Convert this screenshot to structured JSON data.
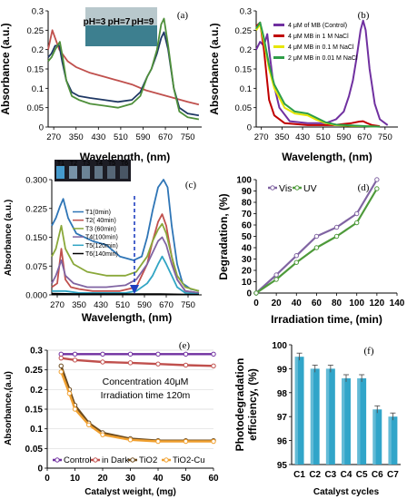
{
  "chart_data": [
    {
      "panel": "(a)",
      "type": "line",
      "xlabel": "Wavelength, (nm)",
      "ylabel": "Absorbance (a.u.)",
      "xlim": [
        250,
        800
      ],
      "ylim": [
        0,
        0.3
      ],
      "xticks": [
        270,
        350,
        430,
        510,
        590,
        670,
        750
      ],
      "xtick_labels": [
        "270",
        "350",
        "430",
        "510",
        "590",
        "670",
        "750"
      ],
      "yticks": [
        0,
        0.05,
        0.1,
        0.15,
        0.2,
        0.25,
        0.3
      ],
      "ytick_labels": [
        "0",
        "0.05",
        "0.1",
        "0.15",
        "0.2",
        "0.25",
        "0.3"
      ],
      "inset_labels": [
        "pH=3",
        "pH=7",
        "pH=9"
      ],
      "colors": {
        "red": "#c0504d",
        "darkblue": "#1f3864",
        "green": "#4e8f3a",
        "inset_bg": "#3d7f8f"
      },
      "series": [
        {
          "color": "#c0504d",
          "x": [
            250,
            265,
            275,
            290,
            320,
            350,
            400,
            450,
            500,
            550,
            600,
            650,
            700,
            750,
            790
          ],
          "y": [
            0.2,
            0.25,
            0.23,
            0.2,
            0.17,
            0.155,
            0.14,
            0.13,
            0.12,
            0.11,
            0.095,
            0.085,
            0.075,
            0.065,
            0.058
          ]
        },
        {
          "color": "#1f3864",
          "x": [
            250,
            262,
            275,
            290,
            300,
            315,
            335,
            360,
            400,
            450,
            500,
            550,
            580,
            605,
            620,
            640,
            655,
            665,
            680,
            700,
            720,
            750,
            790
          ],
          "y": [
            0.18,
            0.19,
            0.21,
            0.21,
            0.17,
            0.12,
            0.09,
            0.08,
            0.075,
            0.07,
            0.065,
            0.07,
            0.09,
            0.13,
            0.15,
            0.19,
            0.23,
            0.245,
            0.2,
            0.1,
            0.05,
            0.035,
            0.03
          ]
        },
        {
          "color": "#4e8f3a",
          "x": [
            250,
            262,
            275,
            292,
            302,
            315,
            335,
            360,
            400,
            450,
            500,
            550,
            580,
            605,
            620,
            640,
            655,
            665,
            680,
            700,
            720,
            750,
            790
          ],
          "y": [
            0.17,
            0.18,
            0.2,
            0.22,
            0.18,
            0.12,
            0.08,
            0.07,
            0.06,
            0.055,
            0.05,
            0.06,
            0.08,
            0.13,
            0.15,
            0.2,
            0.265,
            0.28,
            0.21,
            0.1,
            0.04,
            0.025,
            0.02
          ]
        }
      ]
    },
    {
      "panel": "(b)",
      "type": "line",
      "xlabel": "Wavelength, (nm)",
      "ylabel": "Absorbance (a.u.)",
      "xlim": [
        250,
        800
      ],
      "ylim": [
        0,
        0.3
      ],
      "xticks": [
        270,
        350,
        430,
        510,
        590,
        670,
        750
      ],
      "xtick_labels": [
        "270",
        "350",
        "430",
        "510",
        "590",
        "670",
        "750"
      ],
      "yticks": [
        0,
        0.05,
        0.1,
        0.15,
        0.2,
        0.25,
        0.3
      ],
      "ytick_labels": [
        "0",
        "0.05",
        "0.1",
        "0.15",
        "0.2",
        "0.25",
        "0.3"
      ],
      "legend_position": "top-right",
      "series": [
        {
          "name": "4 μM of MB (Control)",
          "color": "#7030a0",
          "x": [
            250,
            265,
            280,
            293,
            300,
            315,
            340,
            380,
            450,
            520,
            560,
            590,
            610,
            625,
            640,
            655,
            665,
            675,
            690,
            710,
            730,
            760
          ],
          "y": [
            0.2,
            0.22,
            0.21,
            0.24,
            0.2,
            0.12,
            0.05,
            0.015,
            0.01,
            0.01,
            0.02,
            0.04,
            0.08,
            0.12,
            0.18,
            0.25,
            0.275,
            0.25,
            0.15,
            0.06,
            0.02,
            0.005
          ]
        },
        {
          "name": "4 μM MB in 1 M  NaCl",
          "color": "#c00000",
          "x": [
            250,
            265,
            280,
            300,
            320,
            360,
            450,
            550,
            620,
            650,
            665,
            680,
            700,
            730
          ],
          "y": [
            0.26,
            0.27,
            0.2,
            0.07,
            0.03,
            0.01,
            0.005,
            0.005,
            0.01,
            0.014,
            0.015,
            0.01,
            0.005,
            0.002
          ]
        },
        {
          "name": "4 μM MB in 0.1 M NaCl",
          "color": "#e6e600",
          "x": [
            250,
            265,
            280,
            300,
            320,
            360,
            400,
            450,
            480,
            520,
            560,
            620,
            680,
            730
          ],
          "y": [
            0.25,
            0.265,
            0.22,
            0.15,
            0.1,
            0.05,
            0.035,
            0.03,
            0.02,
            0.01,
            0.005,
            0.003,
            0.002,
            0.001
          ]
        },
        {
          "name": "2 μM MB in 0.01 M NaCl",
          "color": "#2e9e48",
          "x": [
            250,
            265,
            280,
            300,
            320,
            360,
            400,
            450,
            480,
            520,
            560,
            620,
            680,
            730
          ],
          "y": [
            0.255,
            0.27,
            0.23,
            0.16,
            0.11,
            0.06,
            0.04,
            0.035,
            0.025,
            0.012,
            0.006,
            0.004,
            0.002,
            0.001
          ]
        }
      ]
    },
    {
      "panel": "(c)",
      "type": "line",
      "xlabel": "Wavelength, (nm)",
      "ylabel": "Absorbance (a.u.)",
      "xlim": [
        250,
        800
      ],
      "ylim": [
        0,
        0.3
      ],
      "xticks": [
        270,
        350,
        430,
        510,
        590,
        670,
        750
      ],
      "xtick_labels": [
        "270",
        "350",
        "430",
        "510",
        "590",
        "670",
        "750"
      ],
      "yticks": [
        0,
        0.075,
        0.15,
        0.225,
        0.3
      ],
      "ytick_labels": [
        "0.000",
        "0.075",
        "0.150",
        "0.225",
        "0.300"
      ],
      "inset_labels": [
        "T1",
        "T2",
        "T3",
        "T4",
        "T5",
        "T6"
      ],
      "series": [
        {
          "name": "T1(0min)",
          "color": "#2e75b6",
          "x": [
            250,
            265,
            280,
            292,
            310,
            340,
            400,
            450,
            500,
            550,
            580,
            600,
            620,
            640,
            660,
            675,
            690,
            710,
            730,
            760,
            790
          ],
          "y": [
            0.18,
            0.2,
            0.23,
            0.25,
            0.2,
            0.16,
            0.14,
            0.13,
            0.1,
            0.09,
            0.1,
            0.15,
            0.22,
            0.28,
            0.3,
            0.28,
            0.18,
            0.08,
            0.03,
            0.015,
            0.01
          ]
        },
        {
          "name": "T2( 40min)",
          "color": "#c0504d",
          "x": [
            250,
            270,
            285,
            300,
            320,
            350,
            400,
            500,
            560,
            600,
            620,
            640,
            655,
            670,
            690,
            710,
            740,
            790
          ],
          "y": [
            0.02,
            0.03,
            0.12,
            0.04,
            0.02,
            0.015,
            0.01,
            0.01,
            0.02,
            0.08,
            0.14,
            0.19,
            0.21,
            0.18,
            0.1,
            0.04,
            0.01,
            0.005
          ]
        },
        {
          "name": "T3 (60min)",
          "color": "#8aa83a",
          "x": [
            250,
            265,
            285,
            300,
            330,
            380,
            450,
            520,
            560,
            600,
            620,
            640,
            655,
            670,
            690,
            710,
            740,
            790
          ],
          "y": [
            0.1,
            0.12,
            0.18,
            0.12,
            0.08,
            0.06,
            0.05,
            0.05,
            0.06,
            0.1,
            0.14,
            0.17,
            0.185,
            0.16,
            0.1,
            0.05,
            0.02,
            0.01
          ]
        },
        {
          "name": "T4(100min)",
          "color": "#8064a2",
          "x": [
            250,
            265,
            285,
            300,
            330,
            380,
            450,
            520,
            560,
            600,
            620,
            640,
            655,
            670,
            690,
            710,
            740,
            790
          ],
          "y": [
            0.03,
            0.05,
            0.09,
            0.05,
            0.03,
            0.02,
            0.02,
            0.025,
            0.04,
            0.08,
            0.11,
            0.14,
            0.15,
            0.13,
            0.08,
            0.04,
            0.01,
            0.005
          ]
        },
        {
          "name": "T5(120min)",
          "color": "#31a5c4",
          "x": [
            250,
            300,
            350,
            450,
            520,
            560,
            600,
            620,
            640,
            655,
            670,
            690,
            710,
            740,
            790
          ],
          "y": [
            0.01,
            0.01,
            0.005,
            0.005,
            0.005,
            0.01,
            0.03,
            0.05,
            0.08,
            0.1,
            0.08,
            0.05,
            0.02,
            0.005,
            0.002
          ]
        },
        {
          "name": "T6(140min)",
          "color": "#000000",
          "x": [
            250,
            350,
            450,
            550,
            650,
            750,
            790
          ],
          "y": [
            0.003,
            0.002,
            0.002,
            0.002,
            0.002,
            0.001,
            0.001
          ]
        }
      ]
    },
    {
      "panel": "(d)",
      "type": "line",
      "xlabel": "Irradiation time, (min)",
      "ylabel": "Degradation, (%)",
      "xlim": [
        0,
        140
      ],
      "ylim": [
        0,
        100
      ],
      "xticks": [
        0,
        20,
        40,
        60,
        80,
        100,
        120,
        140
      ],
      "xtick_labels": [
        "0",
        "20",
        "40",
        "60",
        "80",
        "100",
        "120",
        "140"
      ],
      "yticks": [
        0,
        10,
        20,
        30,
        40,
        50,
        60,
        70,
        80,
        90,
        100
      ],
      "ytick_labels": [
        "0",
        "10",
        "20",
        "30",
        "40",
        "50",
        "60",
        "70",
        "80",
        "90",
        "100"
      ],
      "legend_position": "top-left",
      "series": [
        {
          "name": "Vis",
          "color": "#8064a2",
          "x": [
            0,
            20,
            40,
            60,
            80,
            100,
            120
          ],
          "y": [
            0,
            16,
            33,
            50,
            58,
            70,
            100
          ]
        },
        {
          "name": "UV",
          "color": "#4e9a3a",
          "x": [
            0,
            20,
            40,
            60,
            80,
            100,
            120
          ],
          "y": [
            0,
            12,
            27,
            40,
            50,
            62,
            92
          ]
        }
      ]
    },
    {
      "panel": "(e)",
      "type": "line",
      "xlabel": "Catalyst weight, (mg)",
      "ylabel": "Absorbance,(a.u)",
      "xlim": [
        0,
        60
      ],
      "ylim": [
        0,
        0.3
      ],
      "xticks": [
        0,
        10,
        20,
        30,
        40,
        50,
        60
      ],
      "xtick_labels": [
        "0",
        "10",
        "20",
        "30",
        "40",
        "50",
        "60"
      ],
      "yticks": [
        0,
        0.05,
        0.1,
        0.15,
        0.2,
        0.25,
        0.3
      ],
      "ytick_labels": [
        "0",
        "0.05",
        "0.1",
        "0.15",
        "0.2",
        "0.25",
        "0.3"
      ],
      "annotations": [
        "Concentration 40μM",
        "Irradiation time 120m"
      ],
      "legend_position": "bottom",
      "series": [
        {
          "name": "Control",
          "color": "#7030a0",
          "x": [
            5,
            10,
            20,
            30,
            40,
            50,
            60
          ],
          "y": [
            0.29,
            0.29,
            0.29,
            0.29,
            0.29,
            0.29,
            0.29
          ]
        },
        {
          "name": "in Dark",
          "color": "#c0504d",
          "x": [
            5,
            10,
            20,
            30,
            40,
            50,
            60
          ],
          "y": [
            0.28,
            0.275,
            0.27,
            0.268,
            0.265,
            0.262,
            0.26
          ]
        },
        {
          "name": "TiO2",
          "color": "#6b4a1e",
          "x": [
            5,
            8,
            10,
            15,
            20,
            30,
            40,
            50,
            60
          ],
          "y": [
            0.26,
            0.2,
            0.16,
            0.115,
            0.09,
            0.075,
            0.07,
            0.07,
            0.07
          ]
        },
        {
          "name": "TiO2-Cu",
          "color": "#f0a030",
          "x": [
            5,
            8,
            10,
            15,
            20,
            30,
            40,
            50,
            60
          ],
          "y": [
            0.245,
            0.19,
            0.15,
            0.11,
            0.085,
            0.072,
            0.068,
            0.068,
            0.068
          ]
        }
      ]
    },
    {
      "panel": "(f)",
      "type": "bar",
      "xlabel": "Catalyst cycles",
      "ylabel": "Photodegradation efficiency, (%)",
      "categories": [
        "C1",
        "C2",
        "C3",
        "C4",
        "C5",
        "C6",
        "C7"
      ],
      "values": [
        99.5,
        99.0,
        99.0,
        98.6,
        98.6,
        97.3,
        97.0
      ],
      "errors": [
        0.15,
        0.15,
        0.15,
        0.15,
        0.15,
        0.15,
        0.15
      ],
      "ylim": [
        95,
        100
      ],
      "yticks": [
        95,
        96,
        97,
        98,
        99,
        100
      ],
      "ytick_labels": [
        "95",
        "96",
        "97",
        "98",
        "99",
        "100"
      ],
      "color": "#31a5c9"
    }
  ]
}
